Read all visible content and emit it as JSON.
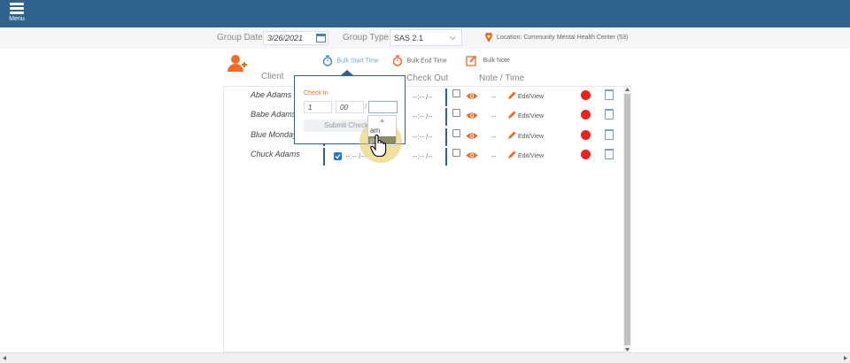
{
  "topbar": {
    "menu_label": "Menu"
  },
  "filter": {
    "group_date_label": "Group Date:",
    "group_date_value": "3/26/2021",
    "group_type_label": "Group Type:",
    "group_type_value": "SAS 2.1",
    "location": "Location: Community Mental Health Center (53)"
  },
  "toolbar": {
    "bulk_start": "Bulk Start Time",
    "bulk_end": "Bulk End Time",
    "bulk_note": "Bulk Note"
  },
  "headers": {
    "client": "Client",
    "check_out": "Check Out",
    "note_time": "Note / Time"
  },
  "rows": [
    {
      "client": "Abe Adams",
      "check_in": "--:-- /--",
      "check_out": "--:-- /--",
      "note": "--",
      "edit": "Edit/View",
      "checked": false
    },
    {
      "client": "Babe Adams",
      "check_in": "--:-- /--",
      "check_out": "--:-- /--",
      "note": "--",
      "edit": "Edit/View",
      "checked": false
    },
    {
      "client": "Blue  Monday",
      "check_in": "--:-- /--",
      "check_out": "--:-- /--",
      "note": "--",
      "edit": "Edit/View",
      "checked": false
    },
    {
      "client": "Chuck Adams",
      "check_in": "--:-- /--",
      "check_out": "--:-- /--",
      "note": "--",
      "edit": "Edit/View",
      "checked": true
    }
  ],
  "popup": {
    "title": "Check In",
    "hour": "1",
    "minute": "00",
    "separator": ":",
    "slash": "/",
    "ampm": "",
    "submit": "Submit Check In",
    "options": [
      "am",
      "pm"
    ]
  },
  "colors": {
    "topbar": "#2f628c",
    "accent": "#f26b21",
    "clock_red": "#f0201c"
  }
}
